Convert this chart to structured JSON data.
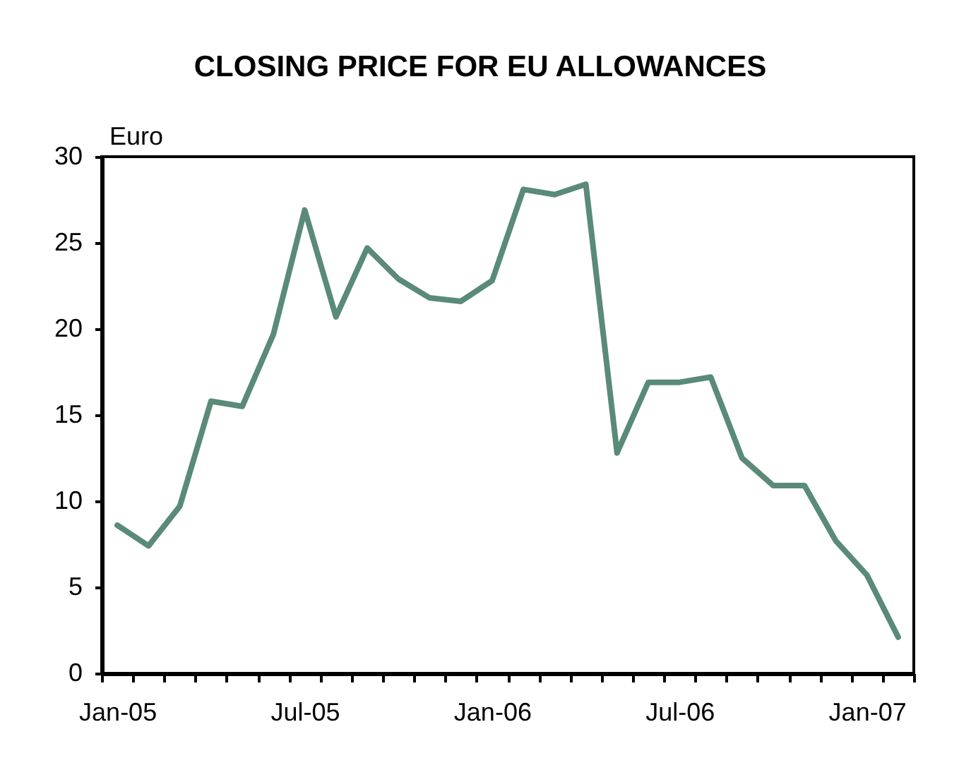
{
  "chart_data": {
    "type": "line",
    "title": "CLOSING PRICE FOR EU ALLOWANCES",
    "ylabel": "Euro",
    "categories": [
      "Jan-05",
      null,
      null,
      null,
      null,
      null,
      "Jul-05",
      null,
      null,
      null,
      null,
      null,
      "Jan-06",
      null,
      null,
      null,
      null,
      null,
      "Jul-06",
      null,
      null,
      null,
      null,
      null,
      "Jan-07",
      null
    ],
    "series": [
      {
        "color": "#5a8a78",
        "values": [
          8.6,
          7.4,
          9.7,
          15.8,
          15.5,
          19.7,
          26.9,
          20.7,
          24.7,
          22.9,
          21.8,
          21.6,
          22.8,
          28.1,
          27.8,
          28.4,
          12.8,
          16.9,
          16.9,
          17.2,
          12.5,
          10.9,
          10.9,
          7.7,
          5.7,
          2.1
        ]
      }
    ],
    "ylim": [
      0,
      30
    ],
    "yticks": [
      0,
      5,
      10,
      15,
      20,
      25,
      30
    ],
    "grid": false,
    "line_style": "solid"
  }
}
